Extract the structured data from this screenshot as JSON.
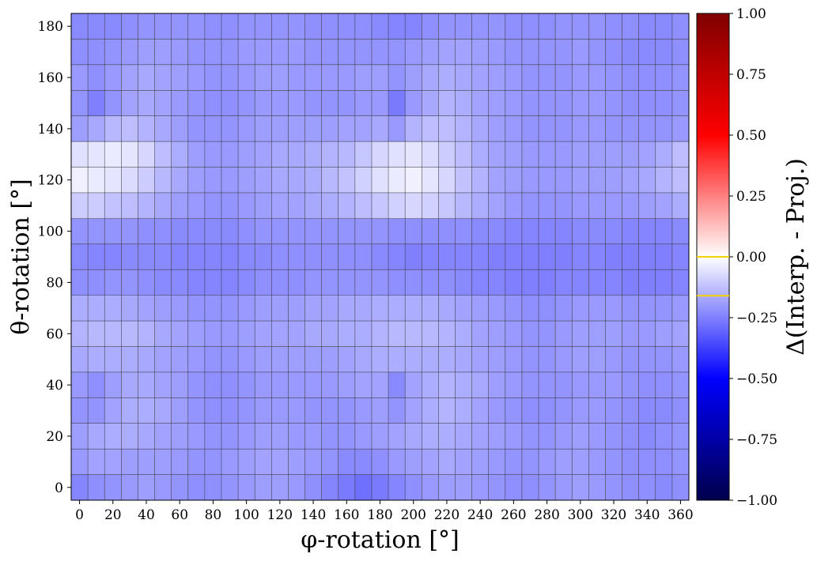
{
  "chart_data": {
    "type": "heatmap",
    "title": "",
    "xlabel": "φ-rotation [°]",
    "ylabel": "θ-rotation [°]",
    "colorbar_label": "Δ(Interp. - Proj.)",
    "xlim": [
      -5,
      365
    ],
    "ylim": [
      -5,
      185
    ],
    "x_ticks": [
      0,
      20,
      40,
      60,
      80,
      100,
      120,
      140,
      160,
      180,
      200,
      220,
      240,
      260,
      280,
      300,
      320,
      340,
      360
    ],
    "y_ticks": [
      0,
      20,
      40,
      60,
      80,
      100,
      120,
      140,
      160,
      180
    ],
    "x_ticklabels": [
      "0",
      "20",
      "40",
      "60",
      "80",
      "100",
      "120",
      "140",
      "160",
      "180",
      "200",
      "220",
      "240",
      "260",
      "280",
      "300",
      "320",
      "340",
      "360"
    ],
    "y_ticklabels": [
      "0",
      "20",
      "40",
      "60",
      "80",
      "100",
      "120",
      "140",
      "160",
      "180"
    ],
    "x": [
      0,
      10,
      20,
      30,
      40,
      50,
      60,
      70,
      80,
      90,
      100,
      110,
      120,
      130,
      140,
      150,
      160,
      170,
      180,
      190,
      200,
      210,
      220,
      230,
      240,
      250,
      260,
      270,
      280,
      290,
      300,
      310,
      320,
      330,
      340,
      350,
      360
    ],
    "y": [
      0,
      10,
      20,
      30,
      40,
      50,
      60,
      70,
      80,
      90,
      100,
      110,
      120,
      130,
      140,
      150,
      160,
      170,
      180
    ],
    "colorbar": {
      "cmap": "seismic",
      "vmin": -1.0,
      "vmax": 1.0,
      "ticks": [
        -1.0,
        -0.75,
        -0.5,
        -0.25,
        0.0,
        0.25,
        0.5,
        0.75,
        1.0
      ],
      "ticklabels": [
        "−1.00",
        "−0.75",
        "−0.50",
        "−0.25",
        "0.00",
        "0.25",
        "0.50",
        "0.75",
        "1.00"
      ],
      "marker_lines": [
        0.0,
        -0.16
      ],
      "marker_color": "#f5d000"
    },
    "grid_color": "#333333",
    "values": [
      [
        -0.24,
        -0.22,
        -0.21,
        -0.2,
        -0.19,
        -0.2,
        -0.21,
        -0.22,
        -0.22,
        -0.21,
        -0.2,
        -0.19,
        -0.19,
        -0.2,
        -0.22,
        -0.24,
        -0.26,
        -0.28,
        -0.26,
        -0.24,
        -0.22,
        -0.2,
        -0.19,
        -0.19,
        -0.2,
        -0.21,
        -0.22,
        -0.22,
        -0.21,
        -0.2,
        -0.19,
        -0.2,
        -0.21,
        -0.22,
        -0.22,
        -0.23,
        -0.22
      ],
      [
        -0.2,
        -0.18,
        -0.18,
        -0.19,
        -0.19,
        -0.19,
        -0.2,
        -0.21,
        -0.21,
        -0.2,
        -0.19,
        -0.18,
        -0.18,
        -0.19,
        -0.2,
        -0.21,
        -0.23,
        -0.23,
        -0.22,
        -0.2,
        -0.19,
        -0.18,
        -0.17,
        -0.18,
        -0.19,
        -0.2,
        -0.21,
        -0.21,
        -0.2,
        -0.19,
        -0.19,
        -0.2,
        -0.21,
        -0.22,
        -0.22,
        -0.22,
        -0.21
      ],
      [
        -0.19,
        -0.17,
        -0.16,
        -0.16,
        -0.17,
        -0.18,
        -0.19,
        -0.2,
        -0.21,
        -0.21,
        -0.2,
        -0.19,
        -0.19,
        -0.2,
        -0.2,
        -0.21,
        -0.21,
        -0.2,
        -0.19,
        -0.18,
        -0.17,
        -0.16,
        -0.16,
        -0.17,
        -0.18,
        -0.19,
        -0.2,
        -0.21,
        -0.21,
        -0.2,
        -0.19,
        -0.2,
        -0.21,
        -0.22,
        -0.23,
        -0.22,
        -0.21
      ],
      [
        -0.21,
        -0.21,
        -0.18,
        -0.16,
        -0.16,
        -0.17,
        -0.19,
        -0.21,
        -0.22,
        -0.22,
        -0.21,
        -0.2,
        -0.2,
        -0.2,
        -0.21,
        -0.21,
        -0.21,
        -0.2,
        -0.19,
        -0.21,
        -0.18,
        -0.16,
        -0.15,
        -0.16,
        -0.18,
        -0.2,
        -0.21,
        -0.22,
        -0.22,
        -0.21,
        -0.2,
        -0.2,
        -0.21,
        -0.22,
        -0.23,
        -0.23,
        -0.22
      ],
      [
        -0.2,
        -0.22,
        -0.19,
        -0.17,
        -0.17,
        -0.18,
        -0.19,
        -0.21,
        -0.22,
        -0.22,
        -0.21,
        -0.2,
        -0.2,
        -0.2,
        -0.2,
        -0.2,
        -0.19,
        -0.18,
        -0.18,
        -0.23,
        -0.18,
        -0.16,
        -0.15,
        -0.16,
        -0.17,
        -0.19,
        -0.2,
        -0.21,
        -0.21,
        -0.21,
        -0.2,
        -0.2,
        -0.2,
        -0.21,
        -0.22,
        -0.22,
        -0.21
      ],
      [
        -0.17,
        -0.16,
        -0.16,
        -0.16,
        -0.17,
        -0.18,
        -0.19,
        -0.2,
        -0.21,
        -0.21,
        -0.2,
        -0.19,
        -0.19,
        -0.19,
        -0.19,
        -0.19,
        -0.18,
        -0.17,
        -0.16,
        -0.16,
        -0.16,
        -0.16,
        -0.16,
        -0.17,
        -0.18,
        -0.19,
        -0.2,
        -0.21,
        -0.21,
        -0.2,
        -0.19,
        -0.19,
        -0.2,
        -0.21,
        -0.21,
        -0.21,
        -0.2
      ],
      [
        -0.15,
        -0.14,
        -0.14,
        -0.14,
        -0.15,
        -0.17,
        -0.18,
        -0.19,
        -0.2,
        -0.2,
        -0.19,
        -0.18,
        -0.18,
        -0.18,
        -0.17,
        -0.17,
        -0.16,
        -0.16,
        -0.15,
        -0.14,
        -0.14,
        -0.14,
        -0.15,
        -0.16,
        -0.18,
        -0.19,
        -0.2,
        -0.21,
        -0.21,
        -0.2,
        -0.19,
        -0.19,
        -0.19,
        -0.2,
        -0.2,
        -0.19,
        -0.18
      ],
      [
        -0.16,
        -0.16,
        -0.16,
        -0.17,
        -0.18,
        -0.19,
        -0.2,
        -0.21,
        -0.21,
        -0.21,
        -0.2,
        -0.19,
        -0.19,
        -0.19,
        -0.18,
        -0.18,
        -0.17,
        -0.17,
        -0.16,
        -0.16,
        -0.16,
        -0.16,
        -0.17,
        -0.18,
        -0.19,
        -0.2,
        -0.21,
        -0.22,
        -0.22,
        -0.21,
        -0.2,
        -0.2,
        -0.2,
        -0.21,
        -0.21,
        -0.21,
        -0.2
      ],
      [
        -0.22,
        -0.22,
        -0.21,
        -0.21,
        -0.22,
        -0.23,
        -0.23,
        -0.24,
        -0.24,
        -0.24,
        -0.23,
        -0.22,
        -0.22,
        -0.22,
        -0.21,
        -0.21,
        -0.21,
        -0.21,
        -0.21,
        -0.22,
        -0.22,
        -0.22,
        -0.22,
        -0.23,
        -0.24,
        -0.24,
        -0.25,
        -0.25,
        -0.25,
        -0.24,
        -0.24,
        -0.24,
        -0.24,
        -0.25,
        -0.25,
        -0.25,
        -0.24
      ],
      [
        -0.23,
        -0.24,
        -0.24,
        -0.23,
        -0.23,
        -0.23,
        -0.24,
        -0.24,
        -0.24,
        -0.24,
        -0.23,
        -0.23,
        -0.22,
        -0.22,
        -0.22,
        -0.22,
        -0.22,
        -0.22,
        -0.23,
        -0.24,
        -0.25,
        -0.24,
        -0.24,
        -0.24,
        -0.24,
        -0.25,
        -0.25,
        -0.25,
        -0.25,
        -0.25,
        -0.24,
        -0.24,
        -0.25,
        -0.25,
        -0.25,
        -0.25,
        -0.24
      ],
      [
        -0.21,
        -0.21,
        -0.21,
        -0.21,
        -0.22,
        -0.22,
        -0.23,
        -0.23,
        -0.23,
        -0.23,
        -0.22,
        -0.21,
        -0.21,
        -0.21,
        -0.21,
        -0.21,
        -0.21,
        -0.21,
        -0.21,
        -0.22,
        -0.22,
        -0.22,
        -0.22,
        -0.22,
        -0.23,
        -0.23,
        -0.24,
        -0.24,
        -0.24,
        -0.24,
        -0.23,
        -0.23,
        -0.23,
        -0.24,
        -0.24,
        -0.24,
        -0.23
      ],
      [
        -0.1,
        -0.1,
        -0.12,
        -0.13,
        -0.15,
        -0.17,
        -0.19,
        -0.2,
        -0.21,
        -0.21,
        -0.2,
        -0.19,
        -0.18,
        -0.18,
        -0.17,
        -0.16,
        -0.15,
        -0.13,
        -0.11,
        -0.09,
        -0.08,
        -0.09,
        -0.11,
        -0.14,
        -0.16,
        -0.18,
        -0.2,
        -0.21,
        -0.21,
        -0.21,
        -0.2,
        -0.2,
        -0.2,
        -0.2,
        -0.19,
        -0.18,
        -0.16
      ],
      [
        -0.03,
        -0.04,
        -0.05,
        -0.07,
        -0.1,
        -0.14,
        -0.17,
        -0.19,
        -0.2,
        -0.2,
        -0.19,
        -0.18,
        -0.17,
        -0.17,
        -0.16,
        -0.14,
        -0.12,
        -0.09,
        -0.06,
        -0.04,
        -0.03,
        -0.05,
        -0.08,
        -0.12,
        -0.15,
        -0.18,
        -0.19,
        -0.2,
        -0.2,
        -0.2,
        -0.19,
        -0.19,
        -0.19,
        -0.18,
        -0.17,
        -0.15,
        -0.13
      ],
      [
        -0.06,
        -0.05,
        -0.04,
        -0.05,
        -0.08,
        -0.13,
        -0.16,
        -0.19,
        -0.2,
        -0.2,
        -0.19,
        -0.18,
        -0.17,
        -0.17,
        -0.16,
        -0.15,
        -0.14,
        -0.11,
        -0.08,
        -0.06,
        -0.05,
        -0.07,
        -0.1,
        -0.13,
        -0.16,
        -0.18,
        -0.19,
        -0.2,
        -0.2,
        -0.2,
        -0.19,
        -0.19,
        -0.19,
        -0.19,
        -0.18,
        -0.16,
        -0.13
      ],
      [
        -0.19,
        -0.17,
        -0.14,
        -0.13,
        -0.15,
        -0.17,
        -0.19,
        -0.21,
        -0.21,
        -0.21,
        -0.2,
        -0.19,
        -0.19,
        -0.19,
        -0.19,
        -0.19,
        -0.18,
        -0.18,
        -0.17,
        -0.2,
        -0.15,
        -0.13,
        -0.13,
        -0.15,
        -0.17,
        -0.19,
        -0.2,
        -0.21,
        -0.21,
        -0.21,
        -0.2,
        -0.2,
        -0.21,
        -0.21,
        -0.21,
        -0.21,
        -0.2
      ],
      [
        -0.21,
        -0.25,
        -0.21,
        -0.18,
        -0.17,
        -0.18,
        -0.2,
        -0.21,
        -0.22,
        -0.22,
        -0.21,
        -0.2,
        -0.2,
        -0.2,
        -0.21,
        -0.21,
        -0.21,
        -0.2,
        -0.2,
        -0.26,
        -0.2,
        -0.17,
        -0.15,
        -0.16,
        -0.18,
        -0.19,
        -0.2,
        -0.21,
        -0.21,
        -0.21,
        -0.2,
        -0.2,
        -0.21,
        -0.22,
        -0.22,
        -0.22,
        -0.21
      ],
      [
        -0.2,
        -0.22,
        -0.2,
        -0.18,
        -0.17,
        -0.18,
        -0.19,
        -0.2,
        -0.21,
        -0.21,
        -0.2,
        -0.19,
        -0.19,
        -0.2,
        -0.2,
        -0.2,
        -0.2,
        -0.19,
        -0.19,
        -0.21,
        -0.19,
        -0.17,
        -0.16,
        -0.17,
        -0.18,
        -0.19,
        -0.2,
        -0.21,
        -0.21,
        -0.21,
        -0.2,
        -0.2,
        -0.21,
        -0.22,
        -0.22,
        -0.22,
        -0.21
      ],
      [
        -0.22,
        -0.22,
        -0.21,
        -0.2,
        -0.19,
        -0.19,
        -0.2,
        -0.21,
        -0.21,
        -0.21,
        -0.2,
        -0.2,
        -0.2,
        -0.2,
        -0.21,
        -0.21,
        -0.21,
        -0.21,
        -0.21,
        -0.21,
        -0.2,
        -0.19,
        -0.18,
        -0.18,
        -0.19,
        -0.2,
        -0.21,
        -0.21,
        -0.21,
        -0.21,
        -0.2,
        -0.21,
        -0.22,
        -0.23,
        -0.23,
        -0.23,
        -0.22
      ],
      [
        -0.23,
        -0.23,
        -0.23,
        -0.22,
        -0.21,
        -0.21,
        -0.21,
        -0.21,
        -0.22,
        -0.22,
        -0.21,
        -0.21,
        -0.21,
        -0.21,
        -0.22,
        -0.22,
        -0.22,
        -0.22,
        -0.23,
        -0.24,
        -0.24,
        -0.22,
        -0.21,
        -0.21,
        -0.21,
        -0.21,
        -0.22,
        -0.22,
        -0.22,
        -0.21,
        -0.21,
        -0.21,
        -0.22,
        -0.22,
        -0.23,
        -0.23,
        -0.22
      ]
    ]
  }
}
